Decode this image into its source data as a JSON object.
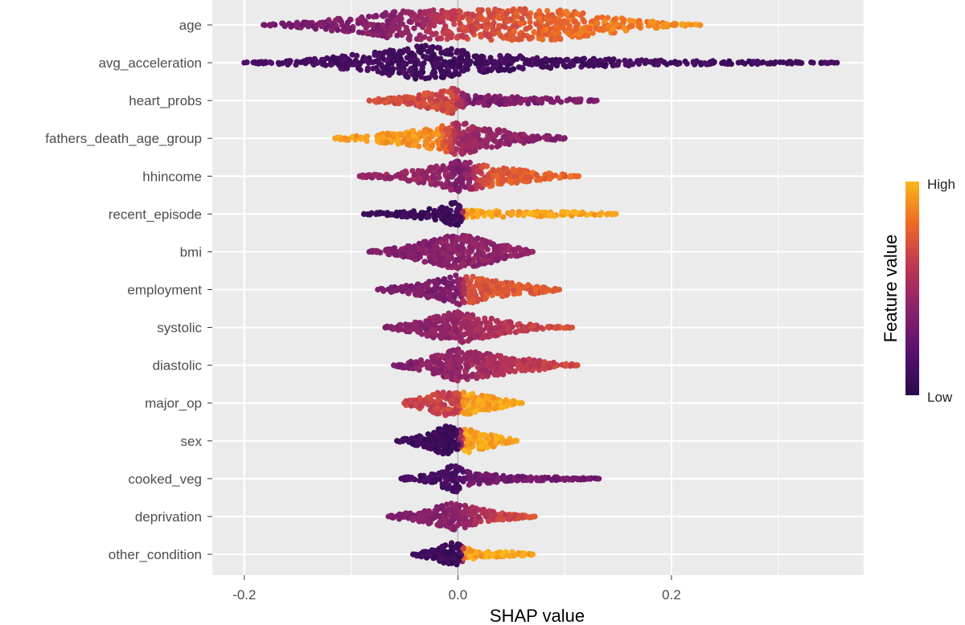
{
  "chart_data": {
    "type": "scatter",
    "subtype": "beeswarm",
    "xlabel": "SHAP value",
    "ylabel": "",
    "xlim": [
      -0.23,
      0.38
    ],
    "x_ticks": [
      -0.2,
      0.0,
      0.2
    ],
    "x_tick_labels": [
      "-0.2",
      "0.0",
      "0.2"
    ],
    "grid": true,
    "legend": {
      "title": "Feature value",
      "high_label": "High",
      "low_label": "Low",
      "placement": "right",
      "colors": [
        "#fbb61a",
        "#ed6925",
        "#bc3754",
        "#8a226a",
        "#57106e",
        "#2b0a4c"
      ]
    },
    "features": [
      {
        "name": "age",
        "min": -0.182,
        "max": 0.227,
        "center": -0.05,
        "profile": [
          [
            -0.18,
            0.04
          ],
          [
            -0.14,
            0.18
          ],
          [
            -0.08,
            0.55
          ],
          [
            -0.05,
            0.85
          ],
          [
            0.0,
            0.75
          ],
          [
            0.05,
            0.9
          ],
          [
            0.09,
            0.85
          ],
          [
            0.13,
            0.55
          ],
          [
            0.17,
            0.25
          ],
          [
            0.2,
            0.08
          ],
          [
            0.227,
            0.02
          ]
        ],
        "colors": [
          [
            -0.18,
            0.3
          ],
          [
            -0.05,
            0.4
          ],
          [
            0.0,
            0.65
          ],
          [
            0.1,
            0.8
          ],
          [
            0.2,
            0.9
          ]
        ]
      },
      {
        "name": "avg_acceleration",
        "min": -0.2,
        "max": 0.355,
        "center": -0.03,
        "profile": [
          [
            -0.2,
            0.02
          ],
          [
            -0.15,
            0.12
          ],
          [
            -0.08,
            0.55
          ],
          [
            -0.03,
            0.95
          ],
          [
            0.02,
            0.55
          ],
          [
            0.1,
            0.25
          ],
          [
            0.2,
            0.12
          ],
          [
            0.3,
            0.06
          ],
          [
            0.355,
            0.02
          ]
        ],
        "colors": [
          [
            -0.2,
            0.15
          ],
          [
            0.0,
            0.1
          ],
          [
            0.35,
            0.12
          ]
        ]
      },
      {
        "name": "heart_probs",
        "min": -0.083,
        "max": 0.13,
        "center": -0.01,
        "profile": [
          [
            -0.083,
            0.06
          ],
          [
            -0.05,
            0.2
          ],
          [
            -0.02,
            0.5
          ],
          [
            -0.01,
            0.85
          ],
          [
            0.0,
            0.55
          ],
          [
            0.01,
            0.3
          ],
          [
            0.05,
            0.2
          ],
          [
            0.1,
            0.12
          ],
          [
            0.13,
            0.03
          ]
        ],
        "colors": [
          [
            -0.083,
            0.68
          ],
          [
            -0.005,
            0.68
          ],
          [
            0.01,
            0.35
          ],
          [
            0.13,
            0.35
          ]
        ]
      },
      {
        "name": "fathers_death_age_group",
        "min": -0.115,
        "max": 0.1,
        "center": 0.0,
        "profile": [
          [
            -0.115,
            0.04
          ],
          [
            -0.09,
            0.15
          ],
          [
            -0.05,
            0.35
          ],
          [
            -0.02,
            0.6
          ],
          [
            0.0,
            0.9
          ],
          [
            0.02,
            0.65
          ],
          [
            0.05,
            0.35
          ],
          [
            0.08,
            0.15
          ],
          [
            0.1,
            0.04
          ]
        ],
        "colors": [
          [
            -0.115,
            0.95
          ],
          [
            -0.02,
            0.9
          ],
          [
            0.0,
            0.5
          ],
          [
            0.1,
            0.35
          ]
        ]
      },
      {
        "name": "hhincome",
        "min": -0.092,
        "max": 0.113,
        "center": 0.0,
        "profile": [
          [
            -0.092,
            0.04
          ],
          [
            -0.06,
            0.2
          ],
          [
            -0.03,
            0.4
          ],
          [
            0.0,
            0.85
          ],
          [
            0.03,
            0.55
          ],
          [
            0.07,
            0.25
          ],
          [
            0.1,
            0.1
          ],
          [
            0.113,
            0.02
          ]
        ],
        "colors": [
          [
            -0.092,
            0.45
          ],
          [
            -0.01,
            0.45
          ],
          [
            0.0,
            0.3
          ],
          [
            0.03,
            0.75
          ],
          [
            0.11,
            0.8
          ]
        ]
      },
      {
        "name": "recent_episode",
        "min": -0.088,
        "max": 0.148,
        "center": 0.0,
        "profile": [
          [
            -0.088,
            0.04
          ],
          [
            -0.05,
            0.15
          ],
          [
            -0.02,
            0.35
          ],
          [
            0.0,
            0.7
          ],
          [
            0.005,
            0.2
          ],
          [
            0.05,
            0.16
          ],
          [
            0.12,
            0.1
          ],
          [
            0.148,
            0.02
          ]
        ],
        "colors": [
          [
            -0.088,
            0.08
          ],
          [
            0.003,
            0.08
          ],
          [
            0.006,
            0.95
          ],
          [
            0.148,
            0.95
          ]
        ]
      },
      {
        "name": "bmi",
        "min": -0.083,
        "max": 0.07,
        "center": 0.0,
        "profile": [
          [
            -0.083,
            0.04
          ],
          [
            -0.05,
            0.3
          ],
          [
            -0.02,
            0.7
          ],
          [
            0.0,
            0.95
          ],
          [
            0.02,
            0.75
          ],
          [
            0.05,
            0.3
          ],
          [
            0.07,
            0.03
          ]
        ],
        "colors": [
          [
            -0.08,
            0.35
          ],
          [
            0.0,
            0.4
          ],
          [
            0.07,
            0.45
          ]
        ]
      },
      {
        "name": "employment",
        "min": -0.075,
        "max": 0.095,
        "center": 0.0,
        "profile": [
          [
            -0.075,
            0.04
          ],
          [
            -0.04,
            0.3
          ],
          [
            -0.01,
            0.65
          ],
          [
            0.0,
            0.9
          ],
          [
            0.03,
            0.5
          ],
          [
            0.07,
            0.25
          ],
          [
            0.095,
            0.03
          ]
        ],
        "colors": [
          [
            -0.075,
            0.35
          ],
          [
            0.0,
            0.35
          ],
          [
            0.01,
            0.7
          ],
          [
            0.095,
            0.75
          ]
        ]
      },
      {
        "name": "systolic",
        "min": -0.068,
        "max": 0.107,
        "center": 0.0,
        "profile": [
          [
            -0.068,
            0.04
          ],
          [
            -0.04,
            0.3
          ],
          [
            -0.01,
            0.75
          ],
          [
            0.0,
            0.85
          ],
          [
            0.02,
            0.6
          ],
          [
            0.05,
            0.3
          ],
          [
            0.09,
            0.05
          ],
          [
            0.107,
            0.02
          ]
        ],
        "colors": [
          [
            -0.068,
            0.35
          ],
          [
            0.0,
            0.45
          ],
          [
            0.09,
            0.7
          ]
        ]
      },
      {
        "name": "diastolic",
        "min": -0.06,
        "max": 0.112,
        "center": 0.0,
        "profile": [
          [
            -0.06,
            0.04
          ],
          [
            -0.03,
            0.35
          ],
          [
            0.0,
            0.9
          ],
          [
            0.03,
            0.6
          ],
          [
            0.07,
            0.3
          ],
          [
            0.112,
            0.03
          ]
        ],
        "colors": [
          [
            -0.06,
            0.35
          ],
          [
            0.0,
            0.45
          ],
          [
            0.112,
            0.7
          ]
        ]
      },
      {
        "name": "major_op",
        "min": -0.05,
        "max": 0.06,
        "center": -0.015,
        "profile": [
          [
            -0.05,
            0.1
          ],
          [
            -0.025,
            0.45
          ],
          [
            -0.015,
            0.7
          ],
          [
            0.0,
            0.55
          ],
          [
            0.01,
            0.6
          ],
          [
            0.02,
            0.45
          ],
          [
            0.04,
            0.25
          ],
          [
            0.06,
            0.03
          ]
        ],
        "colors": [
          [
            -0.05,
            0.65
          ],
          [
            0.0,
            0.65
          ],
          [
            0.005,
            0.95
          ],
          [
            0.06,
            0.95
          ]
        ]
      },
      {
        "name": "sex",
        "min": -0.057,
        "max": 0.055,
        "center": -0.01,
        "profile": [
          [
            -0.057,
            0.04
          ],
          [
            -0.03,
            0.35
          ],
          [
            -0.01,
            0.85
          ],
          [
            0.0,
            0.6
          ],
          [
            0.01,
            0.65
          ],
          [
            0.03,
            0.35
          ],
          [
            0.055,
            0.04
          ]
        ],
        "colors": [
          [
            -0.057,
            0.08
          ],
          [
            0.0,
            0.08
          ],
          [
            0.006,
            0.95
          ],
          [
            0.055,
            0.95
          ]
        ]
      },
      {
        "name": "cooked_veg",
        "min": -0.053,
        "max": 0.132,
        "center": -0.005,
        "profile": [
          [
            -0.053,
            0.04
          ],
          [
            -0.02,
            0.3
          ],
          [
            -0.005,
            0.85
          ],
          [
            0.01,
            0.35
          ],
          [
            0.05,
            0.12
          ],
          [
            0.1,
            0.08
          ],
          [
            0.132,
            0.02
          ]
        ],
        "colors": [
          [
            -0.053,
            0.12
          ],
          [
            0.0,
            0.12
          ],
          [
            0.01,
            0.3
          ],
          [
            0.132,
            0.3
          ]
        ]
      },
      {
        "name": "deprivation",
        "min": -0.065,
        "max": 0.072,
        "center": -0.005,
        "profile": [
          [
            -0.065,
            0.04
          ],
          [
            -0.03,
            0.35
          ],
          [
            -0.005,
            0.8
          ],
          [
            0.01,
            0.55
          ],
          [
            0.03,
            0.3
          ],
          [
            0.05,
            0.15
          ],
          [
            0.072,
            0.03
          ]
        ],
        "colors": [
          [
            -0.065,
            0.35
          ],
          [
            0.0,
            0.4
          ],
          [
            0.04,
            0.65
          ],
          [
            0.072,
            0.75
          ]
        ]
      },
      {
        "name": "other_condition",
        "min": -0.042,
        "max": 0.07,
        "center": -0.005,
        "profile": [
          [
            -0.042,
            0.04
          ],
          [
            -0.02,
            0.3
          ],
          [
            -0.005,
            0.65
          ],
          [
            0.003,
            0.5
          ],
          [
            0.02,
            0.15
          ],
          [
            0.05,
            0.14
          ],
          [
            0.07,
            0.03
          ]
        ],
        "colors": [
          [
            -0.042,
            0.08
          ],
          [
            0.003,
            0.08
          ],
          [
            0.006,
            0.95
          ],
          [
            0.07,
            0.95
          ]
        ]
      }
    ]
  }
}
